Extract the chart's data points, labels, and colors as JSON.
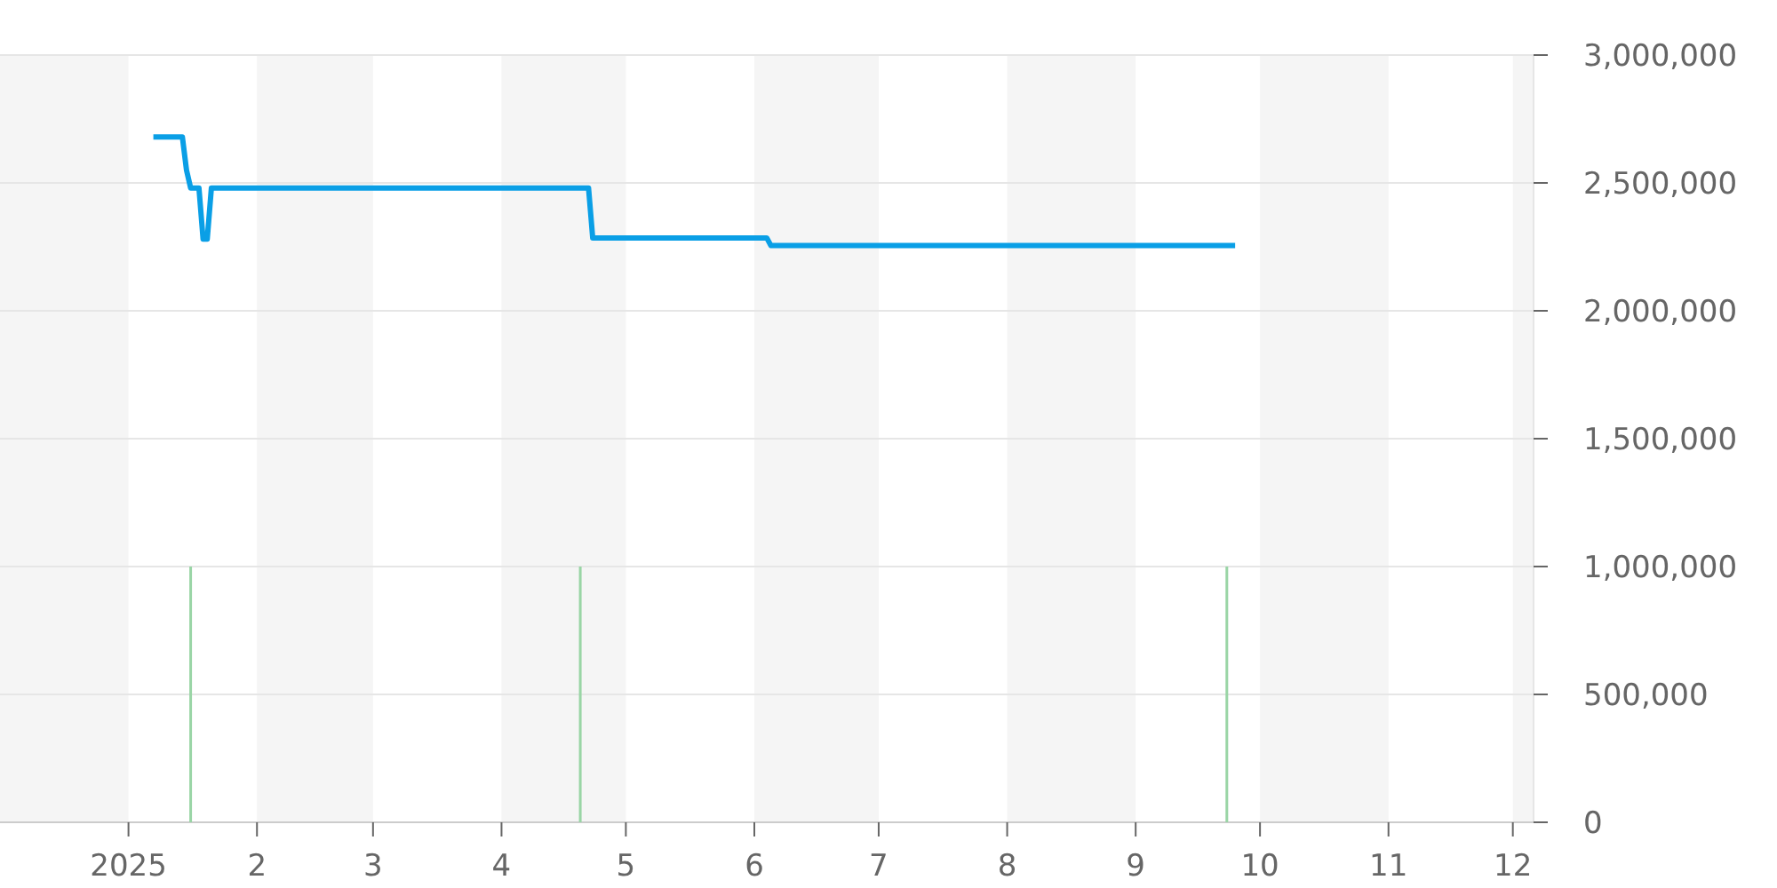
{
  "chart_data": {
    "type": "line",
    "xlim": [
      "2024-12-01",
      "2025-12-06"
    ],
    "ylim": [
      0,
      3000000
    ],
    "yticks": [
      0,
      {
        "value": 500000,
        "label": "500,000"
      },
      {
        "value": 1000000,
        "label": "1,000,000"
      },
      {
        "value": 1500000,
        "label": "1,500,000"
      },
      {
        "value": 2000000,
        "label": "2,000,000"
      },
      {
        "value": 2500000,
        "label": "2,500,000"
      },
      {
        "value": 3000000,
        "label": "3,000,000"
      }
    ],
    "xticks": [
      {
        "value": "2025-01-01",
        "label": "2025"
      },
      {
        "value": "2025-02-01",
        "label": "2"
      },
      {
        "value": "2025-03-01",
        "label": "3"
      },
      {
        "value": "2025-04-01",
        "label": "4"
      },
      {
        "value": "2025-05-01",
        "label": "5"
      },
      {
        "value": "2025-06-01",
        "label": "6"
      },
      {
        "value": "2025-07-01",
        "label": "7"
      },
      {
        "value": "2025-08-01",
        "label": "8"
      },
      {
        "value": "2025-09-01",
        "label": "9"
      },
      {
        "value": "2025-10-01",
        "label": "10"
      },
      {
        "value": "2025-11-01",
        "label": "11"
      },
      {
        "value": "2025-12-01",
        "label": "12"
      }
    ],
    "grid": "y",
    "marker": "none",
    "line_style": "solid",
    "bands": [
      {
        "axis": "x",
        "from": "2024-12-01",
        "to": "2025-01-01",
        "color": "#f5f5f5"
      },
      {
        "axis": "x",
        "from": "2025-02-01",
        "to": "2025-03-01",
        "color": "#f5f5f5"
      },
      {
        "axis": "x",
        "from": "2025-04-01",
        "to": "2025-05-01",
        "color": "#f5f5f5"
      },
      {
        "axis": "x",
        "from": "2025-06-01",
        "to": "2025-07-01",
        "color": "#f5f5f5"
      },
      {
        "axis": "x",
        "from": "2025-08-01",
        "to": "2025-09-01",
        "color": "#f5f5f5"
      },
      {
        "axis": "x",
        "from": "2025-10-01",
        "to": "2025-11-01",
        "color": "#f5f5f5"
      },
      {
        "axis": "x",
        "from": "2025-12-01",
        "to": "2025-12-06",
        "color": "#f5f5f5"
      }
    ],
    "series": [
      {
        "type": "bar",
        "color": "#99d5a5",
        "x": [
          "2025-01-16",
          "2025-04-20",
          "2025-09-23"
        ],
        "values": [
          1000000,
          1000000,
          1000000
        ]
      },
      {
        "color": "#0a9fe6",
        "x": [
          "2025-01-07",
          "2025-01-14",
          "2025-01-15",
          "2025-01-16",
          "2025-01-18",
          "2025-01-19",
          "2025-01-20",
          "2025-01-21",
          "2025-04-22",
          "2025-04-23",
          "2025-06-04",
          "2025-06-05",
          "2025-09-25"
        ],
        "values": [
          2680000,
          2680000,
          2550000,
          2480000,
          2480000,
          2280000,
          2280000,
          2480000,
          2480000,
          2285000,
          2285000,
          2255000,
          2255000
        ]
      }
    ]
  }
}
